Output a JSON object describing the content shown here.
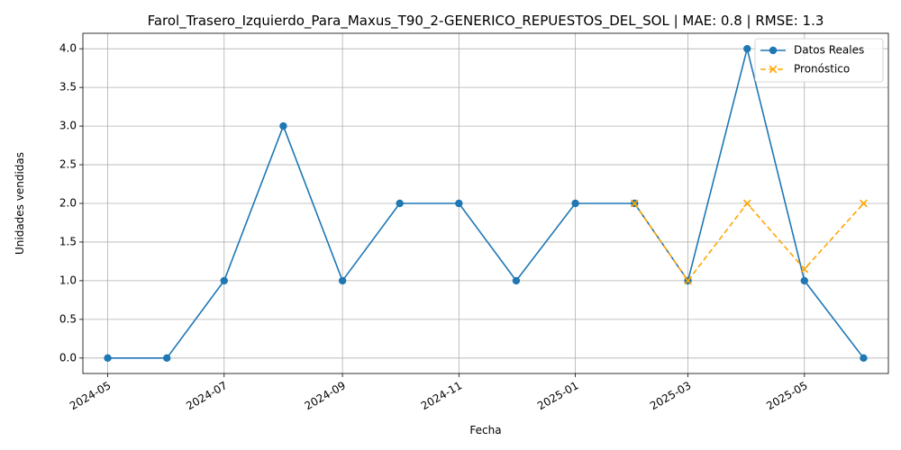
{
  "chart_data": {
    "type": "line",
    "title": "Farol_Trasero_Izquierdo_Para_Maxus_T90_2-GENERICO_REPUESTOS_DEL_SOL | MAE: 0.8 | RMSE: 1.3",
    "xlabel": "Fecha",
    "ylabel": "Unidades vendidas",
    "xlim": [
      "2024-04-18",
      "2025-06-14"
    ],
    "ylim": [
      -0.2,
      4.2
    ],
    "x_ticks": [
      "2024-05-01",
      "2024-07-01",
      "2024-09-01",
      "2024-11-01",
      "2025-01-01",
      "2025-03-01",
      "2025-05-01"
    ],
    "x_tick_labels": [
      "2024-05",
      "2024-07",
      "2024-09",
      "2024-11",
      "2025-01",
      "2025-03",
      "2025-05"
    ],
    "y_ticks": [
      0.0,
      0.5,
      1.0,
      1.5,
      2.0,
      2.5,
      3.0,
      3.5,
      4.0
    ],
    "y_tick_labels": [
      "0.0",
      "0.5",
      "1.0",
      "1.5",
      "2.0",
      "2.5",
      "3.0",
      "3.5",
      "4.0"
    ],
    "grid": true,
    "legend_position": "top-right",
    "series": [
      {
        "name": "Datos Reales",
        "color": "#1f77b4",
        "line_style": "solid",
        "marker": "circle",
        "x": [
          "2024-05-01",
          "2024-06-01",
          "2024-07-01",
          "2024-08-01",
          "2024-09-01",
          "2024-10-01",
          "2024-11-01",
          "2024-12-01",
          "2025-01-01",
          "2025-02-01",
          "2025-03-01",
          "2025-04-01",
          "2025-05-01",
          "2025-06-01"
        ],
        "values": [
          0,
          0,
          1,
          3,
          1,
          2,
          2,
          1,
          2,
          2,
          1,
          4,
          1,
          0
        ]
      },
      {
        "name": "Pronóstico",
        "color": "#ffa500",
        "line_style": "dashed",
        "marker": "x",
        "x": [
          "2025-02-01",
          "2025-03-01",
          "2025-04-01",
          "2025-05-01",
          "2025-06-01"
        ],
        "values": [
          2.0,
          1.0,
          2.0,
          1.15,
          2.0
        ]
      }
    ]
  }
}
